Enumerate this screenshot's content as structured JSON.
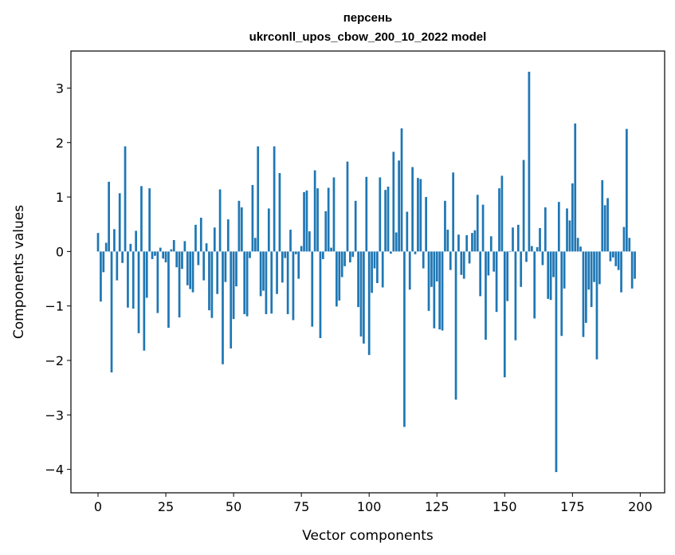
{
  "chart_data": {
    "type": "bar",
    "title_line1": "персень",
    "title_line2": "ukrconll_upos_cbow_200_10_2022 model",
    "xlabel": "Vector components",
    "ylabel": "Components values",
    "xlim": [
      -10,
      209
    ],
    "ylim": [
      -4.43,
      3.68
    ],
    "xticks": [
      0,
      25,
      50,
      75,
      100,
      125,
      150,
      175,
      200
    ],
    "yticks": [
      -4,
      -3,
      -2,
      -1,
      0,
      1,
      2,
      3
    ],
    "bar_color": "#1f77b4",
    "grid": false,
    "values": [
      0.34,
      -0.92,
      -0.38,
      0.16,
      1.28,
      -2.22,
      0.41,
      -0.53,
      1.07,
      -0.21,
      1.93,
      -1.03,
      0.14,
      -1.05,
      0.38,
      -1.5,
      1.2,
      -1.82,
      -0.85,
      1.16,
      -0.14,
      -0.08,
      -1.13,
      0.07,
      -0.13,
      -0.2,
      -1.4,
      0.04,
      0.21,
      -0.29,
      -1.21,
      -0.32,
      0.19,
      -0.62,
      -0.69,
      -0.75,
      0.49,
      -0.25,
      0.62,
      -0.53,
      0.15,
      -1.08,
      -1.22,
      0.44,
      -0.78,
      1.14,
      -2.07,
      -0.56,
      0.59,
      -1.78,
      -1.24,
      -0.64,
      0.93,
      0.81,
      -1.15,
      -1.19,
      -0.12,
      1.22,
      0.25,
      1.93,
      -0.82,
      -0.72,
      -1.15,
      0.79,
      -1.14,
      1.93,
      -0.78,
      1.44,
      -0.57,
      -0.12,
      -1.15,
      0.4,
      -1.26,
      -0.05,
      -0.5,
      0.1,
      1.09,
      1.12,
      0.37,
      -1.38,
      1.49,
      1.16,
      -1.59,
      -0.14,
      0.74,
      1.17,
      0.07,
      1.36,
      -1.01,
      -0.9,
      -0.47,
      -0.27,
      1.65,
      -0.2,
      -0.1,
      0.93,
      -1.02,
      -1.56,
      -1.69,
      1.37,
      -1.9,
      -0.76,
      -0.31,
      -0.58,
      1.36,
      -0.66,
      1.13,
      1.19,
      -0.04,
      1.83,
      0.35,
      1.67,
      2.26,
      -3.22,
      0.73,
      -0.7,
      1.55,
      -0.05,
      1.35,
      1.33,
      -0.31,
      1.0,
      -1.09,
      -0.65,
      -1.41,
      -0.55,
      -1.43,
      -1.45,
      0.93,
      0.4,
      -0.34,
      1.45,
      -2.72,
      0.31,
      -0.43,
      -0.5,
      0.3,
      -0.22,
      0.34,
      0.39,
      1.04,
      -0.82,
      0.86,
      -1.62,
      -0.44,
      0.28,
      -0.37,
      -1.11,
      1.16,
      1.39,
      -2.31,
      -0.91,
      -0.01,
      0.44,
      -1.63,
      0.49,
      -0.65,
      1.68,
      -0.19,
      3.3,
      0.1,
      -1.23,
      0.08,
      0.43,
      -0.25,
      0.81,
      -0.87,
      -0.89,
      -0.47,
      -4.05,
      0.91,
      -1.55,
      -0.68,
      0.79,
      0.57,
      1.25,
      2.35,
      0.25,
      0.09,
      -1.57,
      -1.31,
      -0.7,
      -1.02,
      -0.56,
      -1.98,
      -0.6,
      1.31,
      0.85,
      0.98,
      -0.18,
      -0.11,
      -0.27,
      -0.34,
      -0.75,
      0.45,
      2.25,
      0.25,
      -0.68,
      -0.5
    ]
  }
}
